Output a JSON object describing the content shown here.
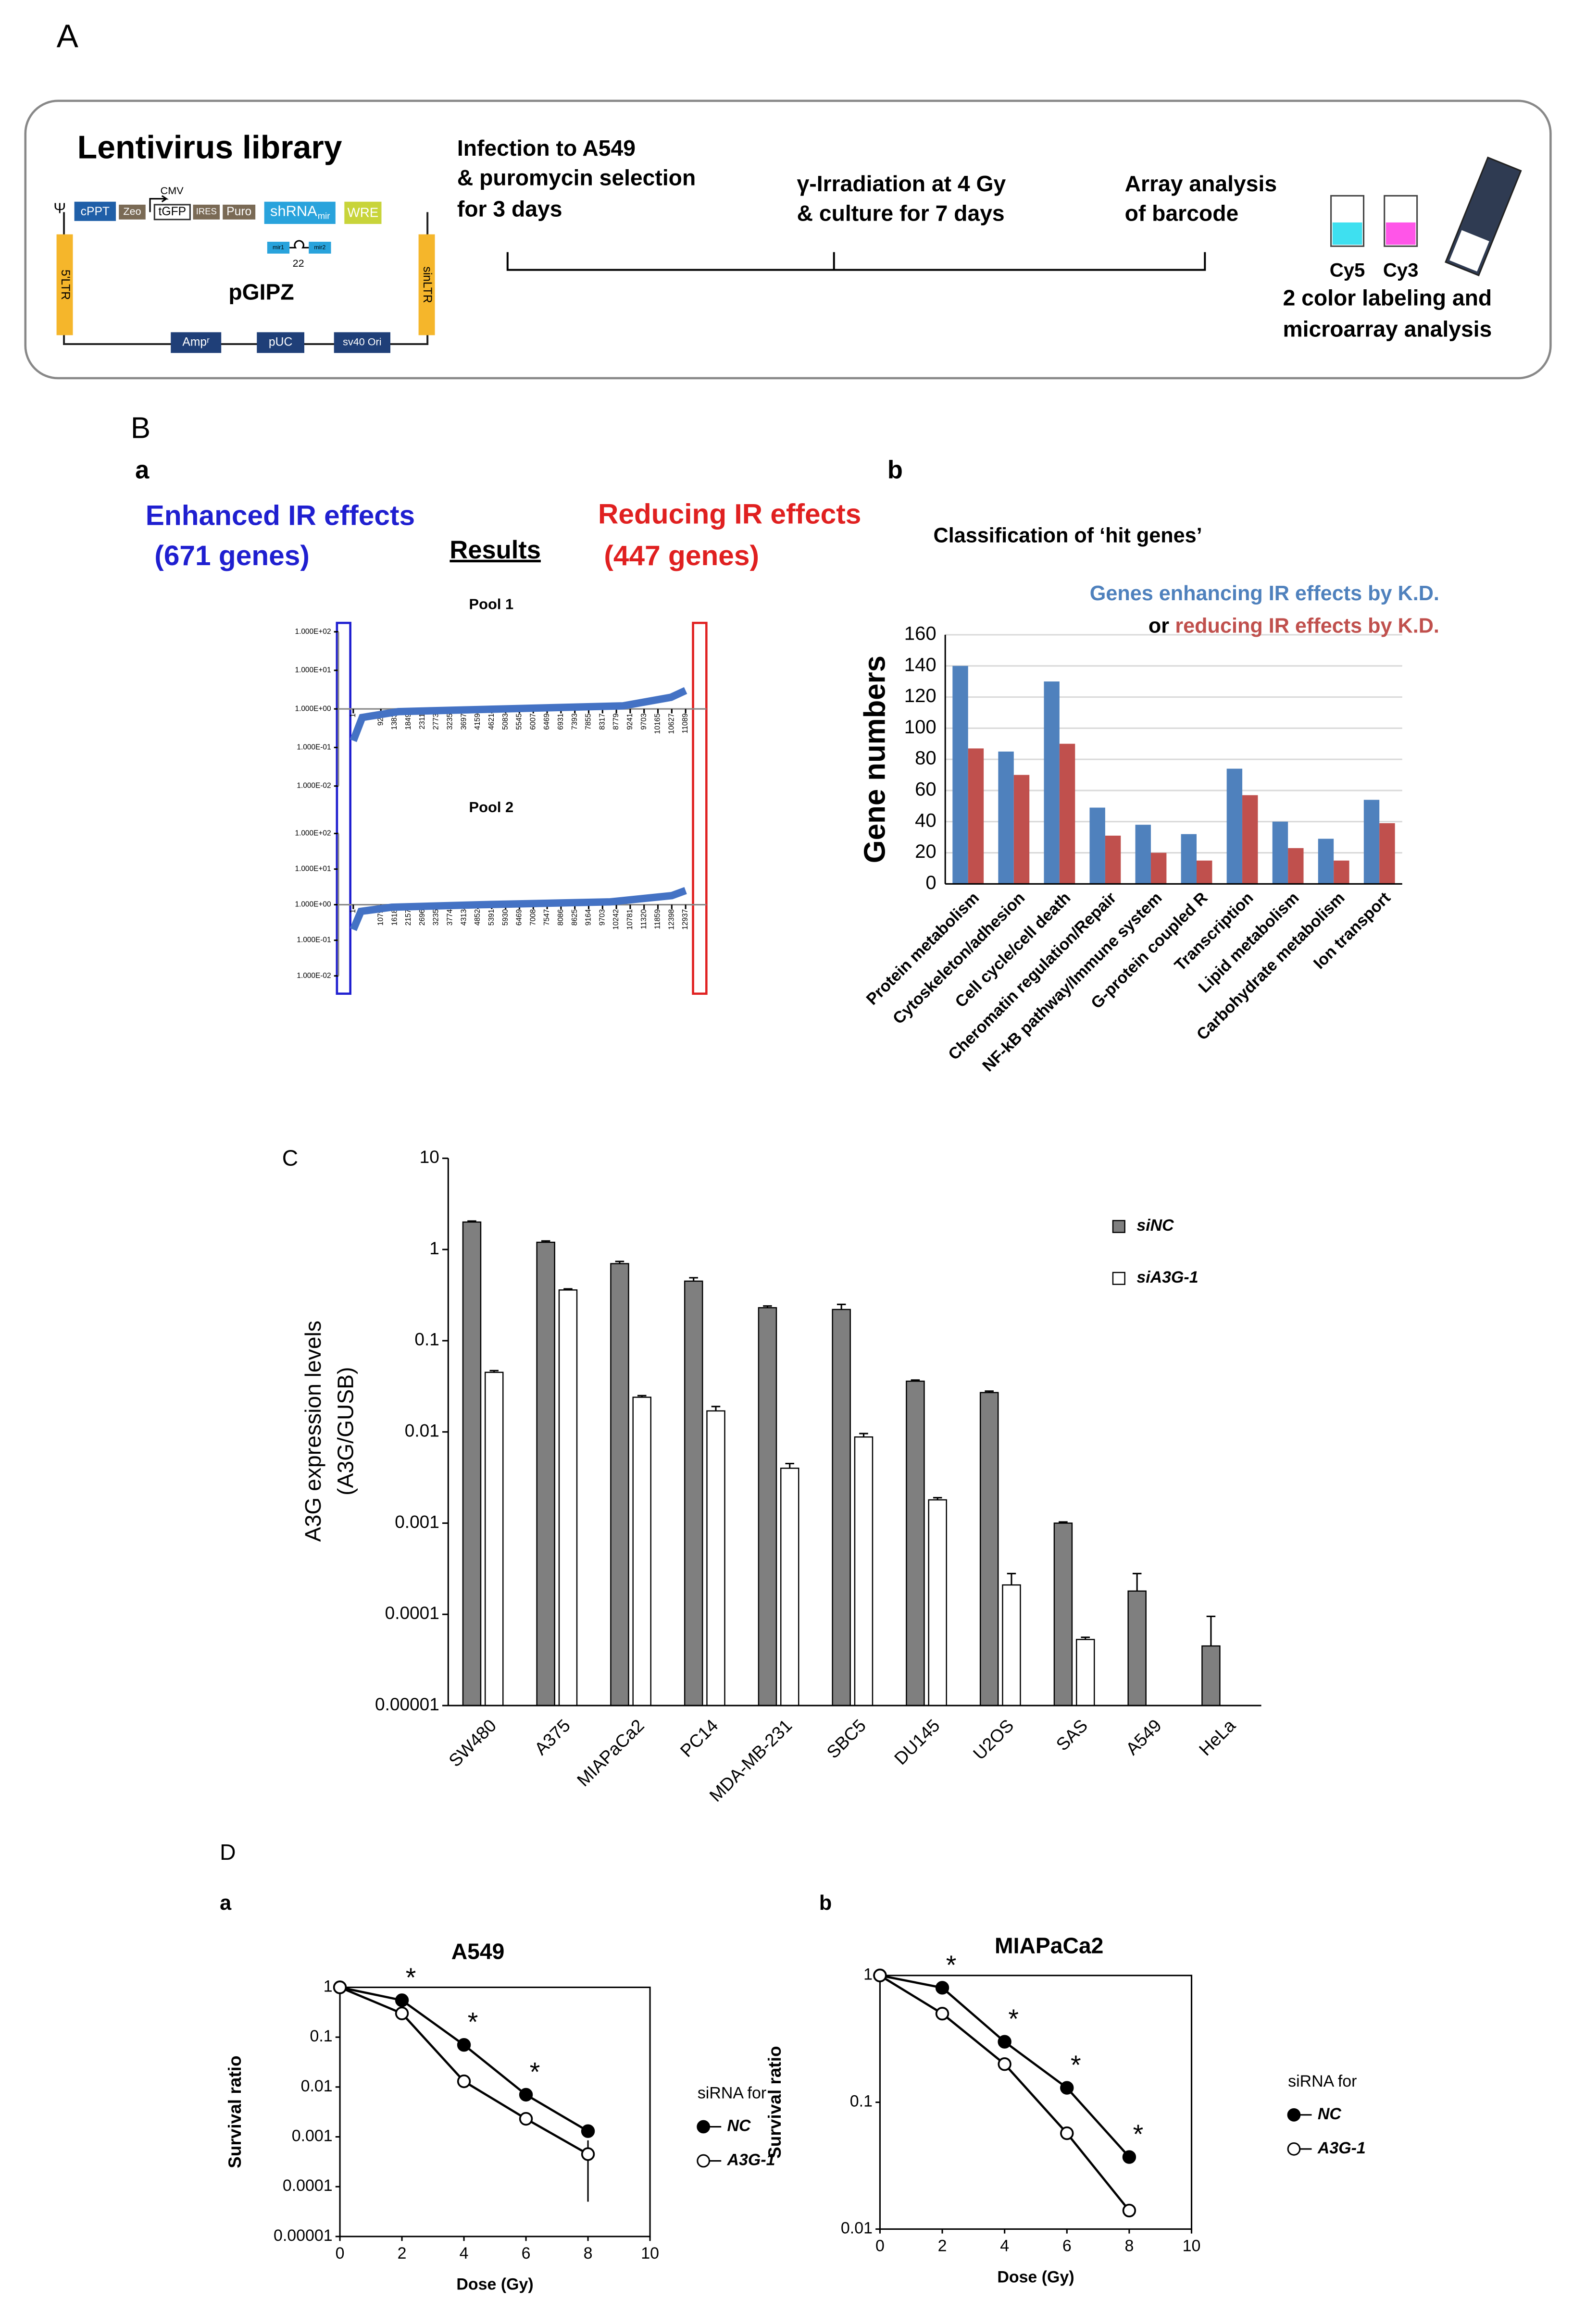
{
  "panel_labels": {
    "a": "A",
    "b": "B",
    "ba": "a",
    "bb": "b",
    "c": "C",
    "d": "D",
    "da": "a",
    "db": "b"
  },
  "panel_a": {
    "title": "Lentivirus library",
    "vector": {
      "psi": "Ψ",
      "cppt": "cPPT",
      "zeo": "Zeo",
      "cmv": "CMV",
      "tgfp": "tGFP",
      "ires": "IRES",
      "puro": "Puro",
      "shrna": "shRNA",
      "mir": "mir",
      "mir1": "mir1",
      "mir2": "mir2",
      "loop": "22",
      "wre": "WRE",
      "name": "pGIPZ",
      "ltr5": "5'LTR",
      "sinltr": "sinLTR",
      "amp": "Ampʳ",
      "puc": "pUC",
      "sv40": "sv40 Ori"
    },
    "steps": [
      [
        "Infection to A549",
        "& puromycin selection",
        "for 3 days"
      ],
      [
        "γ-Irradiation at 4 Gy",
        "& culture for 7 days"
      ],
      [
        "Array analysis",
        "of barcode"
      ]
    ],
    "dyes": [
      "Cy5",
      "Cy3"
    ],
    "caption": [
      "2 color labeling and",
      "microarray analysis"
    ]
  },
  "panel_b_a": {
    "enhanced": "Enhanced IR effects",
    "enhanced_count": "(671 genes)",
    "results": "Results",
    "reducing": "Reducing IR effects",
    "reducing_count": "(447 genes)"
  },
  "chart_data": [
    {
      "type": "line",
      "title": "Pool 1",
      "log_y": true,
      "ylim": [
        0.01,
        100
      ],
      "yticks": [
        {
          "value": 100,
          "label": "1.000E+02"
        },
        {
          "value": 10,
          "label": "1.000E+01"
        },
        {
          "value": 1,
          "label": "1.000E+00"
        },
        {
          "value": 0.1,
          "label": "1.000E-01"
        },
        {
          "value": 0.01,
          "label": "1.000E-02"
        }
      ],
      "xlim": [
        1,
        11089
      ],
      "xticks": [
        1,
        921,
        1383,
        1849,
        2311,
        2773,
        3235,
        3697,
        4159,
        4621,
        5083,
        5545,
        6007,
        6469,
        6931,
        7393,
        7855,
        8317,
        8779,
        9241,
        9703,
        10165,
        10627,
        11089
      ],
      "x": [
        1,
        300,
        1500,
        5000,
        9000,
        10600,
        11089
      ],
      "values": [
        0.15,
        0.6,
        0.85,
        1,
        1.2,
        2,
        3
      ],
      "color": "#4472c4"
    },
    {
      "type": "line",
      "title": "Pool 2",
      "log_y": true,
      "ylim": [
        0.01,
        100
      ],
      "yticks": [
        {
          "value": 100,
          "label": "1.000E+02"
        },
        {
          "value": 10,
          "label": "1.000E+01"
        },
        {
          "value": 1,
          "label": "1.000E+00"
        },
        {
          "value": 0.1,
          "label": "1.000E-01"
        },
        {
          "value": 0.01,
          "label": "1.000E-02"
        }
      ],
      "xlim": [
        1,
        12937
      ],
      "xticks": [
        1,
        1079,
        1618,
        2157,
        2696,
        3235,
        3774,
        4313,
        4852,
        5391,
        5930,
        6469,
        7008,
        7547,
        8086,
        8625,
        9164,
        9703,
        10242,
        10781,
        11320,
        11859,
        12398,
        12937
      ],
      "x": [
        1,
        300,
        1500,
        5000,
        10000,
        12400,
        12937
      ],
      "values": [
        0.2,
        0.65,
        0.85,
        1,
        1.2,
        1.8,
        2.5
      ],
      "color": "#4472c4"
    },
    {
      "type": "bar",
      "title": "Classification of ‘hit genes’",
      "y_label": "Gene numbers",
      "legend_joiner": "or",
      "grid": true,
      "categories": [
        "Protein metabolism",
        "Cytoskeleton/adhesion",
        "Cell cycle/cell death",
        "Cheromatin regulation/Repair",
        "NF-kB pathway/Immune system",
        "G-protein coupled R",
        "Transcription",
        "Lipid metabolism",
        "Carbohydrate metabolism",
        "Ion transport"
      ],
      "series": [
        {
          "name": "Genes enhancing IR effects by K.D.",
          "color": "#4f81bd",
          "values": [
            140,
            85,
            130,
            49,
            38,
            32,
            74,
            40,
            29,
            54
          ]
        },
        {
          "name": "reducing IR effects by K.D.",
          "color": "#c0504d",
          "values": [
            87,
            70,
            90,
            31,
            20,
            15,
            57,
            23,
            15,
            39
          ]
        }
      ],
      "ylim": [
        0,
        160
      ],
      "yticks": [
        0,
        20,
        40,
        60,
        80,
        100,
        120,
        140,
        160
      ]
    },
    {
      "type": "bar",
      "log_y": true,
      "y_label": [
        "A3G expression levels",
        "(A3G/GUSB)"
      ],
      "categories": [
        "SW480",
        "A375",
        "MIAPaCa2",
        "PC14",
        "MDA-MB-231",
        "SBC5",
        "DU145",
        "U2OS",
        "SAS",
        "A549",
        "HeLa"
      ],
      "series": [
        {
          "name": "siNC",
          "color": "#7f7f7f",
          "values": [
            2.0,
            1.2,
            0.7,
            0.45,
            0.23,
            0.22,
            0.036,
            0.027,
            0.001,
            0.00018,
            4.5e-05
          ],
          "errors": [
            0.05,
            0.04,
            0.04,
            0.04,
            0.01,
            0.03,
            0.001,
            0.001,
            3e-05,
            0.0001,
            5e-05
          ]
        },
        {
          "name": "siA3G-1",
          "color": "#ffffff",
          "values": [
            0.045,
            0.36,
            0.024,
            0.017,
            0.004,
            0.0088,
            0.0018,
            0.00021,
            5.3e-05,
            null,
            null
          ],
          "errors": [
            0.002,
            0.01,
            0.001,
            0.002,
            0.0005,
            0.0008,
            0.0001,
            7e-05,
            3e-06,
            null,
            null
          ]
        }
      ],
      "ylim": [
        1e-05,
        10
      ],
      "yticks": [
        10,
        1,
        0.1,
        0.01,
        0.001,
        0.0001,
        1e-05
      ]
    },
    {
      "type": "line",
      "title": "A549",
      "x_label": "Dose (Gy)",
      "y_label": "Survival ratio",
      "log_y": true,
      "legend_title": "siRNA for",
      "x": [
        0,
        2,
        4,
        6,
        8
      ],
      "xlim": [
        0,
        10
      ],
      "xticks": [
        0,
        2,
        4,
        6,
        8,
        10
      ],
      "ylim": [
        1e-05,
        1
      ],
      "yticks": [
        1,
        0.1,
        0.01,
        0.001,
        0.0001,
        1e-05
      ],
      "series": [
        {
          "name": "NC",
          "color": "#000000",
          "fill": "#000000",
          "values": [
            1,
            0.55,
            0.07,
            0.007,
            0.0013
          ]
        },
        {
          "name": "A3G-1",
          "color": "#000000",
          "fill": "#ffffff",
          "values": [
            1,
            0.3,
            0.013,
            0.0023,
            0.00045
          ],
          "errors": [
            null,
            null,
            null,
            null,
            0.0004
          ]
        }
      ],
      "annotations": [
        {
          "text": "*",
          "x": 2
        },
        {
          "text": "*",
          "x": 4
        },
        {
          "text": "*",
          "x": 6
        }
      ]
    },
    {
      "type": "line",
      "title": "MIAPaCa2",
      "x_label": "Dose (Gy)",
      "y_label": "Survival ratio",
      "log_y": true,
      "legend_title": "siRNA for",
      "x": [
        0,
        2,
        4,
        6,
        8
      ],
      "xlim": [
        0,
        10
      ],
      "xticks": [
        0,
        2,
        4,
        6,
        8,
        10
      ],
      "ylim": [
        0.01,
        1
      ],
      "yticks": [
        1,
        0.1,
        0.01
      ],
      "series": [
        {
          "name": "NC",
          "color": "#000000",
          "fill": "#000000",
          "values": [
            1,
            0.8,
            0.3,
            0.13,
            0.037
          ]
        },
        {
          "name": "A3G-1",
          "color": "#000000",
          "fill": "#ffffff",
          "values": [
            1,
            0.5,
            0.2,
            0.057,
            0.014
          ]
        }
      ],
      "annotations": [
        {
          "text": "*",
          "x": 2
        },
        {
          "text": "*",
          "x": 4
        },
        {
          "text": "*",
          "x": 6
        },
        {
          "text": "*",
          "x": 8
        }
      ]
    }
  ]
}
